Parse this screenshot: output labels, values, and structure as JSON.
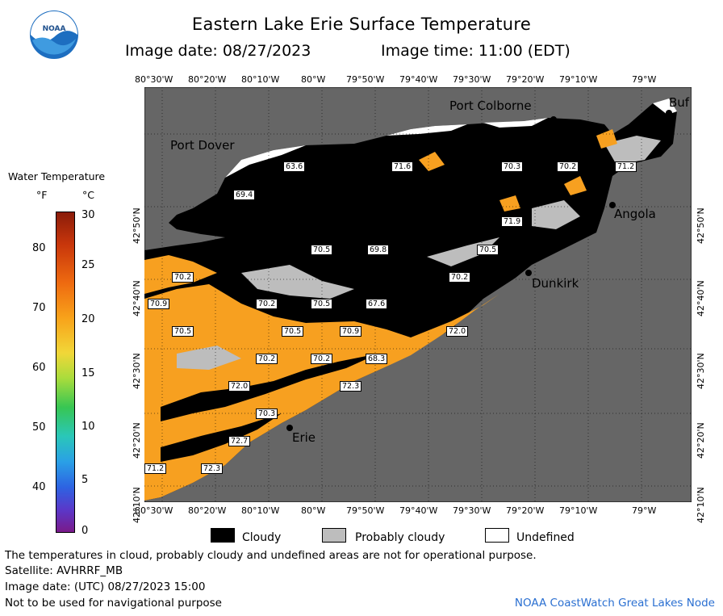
{
  "header": {
    "title": "Eastern Lake Erie Surface Temperature",
    "image_date": "Image date: 08/27/2023",
    "image_time": "Image time: 11:00 (EDT)"
  },
  "logo": {
    "text": "NOAA"
  },
  "map": {
    "lon_labels": [
      "80°30'W",
      "80°20'W",
      "80°10'W",
      "80°W",
      "79°50'W",
      "79°40'W",
      "79°30'W",
      "79°20'W",
      "79°10'W",
      "79°W"
    ],
    "lat_labels": [
      "42°50'N",
      "42°40'N",
      "42°30'N",
      "42°20'N",
      "42°10'N"
    ],
    "cities": [
      {
        "name": "Port Colborne"
      },
      {
        "name": "Port Dover"
      },
      {
        "name": "Angola"
      },
      {
        "name": "Dunkirk"
      },
      {
        "name": "Erie"
      },
      {
        "name": "Buf"
      }
    ],
    "temperature_labels": [
      "63.6",
      "69.4",
      "71.6",
      "70.3",
      "70.2",
      "71.2",
      "71.9",
      "70.5",
      "69.8",
      "70.5",
      "70.2",
      "70.2",
      "70.9",
      "70.2",
      "70.5",
      "67.6",
      "70.5",
      "70.5",
      "70.9",
      "72.0",
      "70.2",
      "70.2",
      "68.3",
      "72.0",
      "72.3",
      "70.3",
      "72.7",
      "71.2",
      "72.3"
    ],
    "colors": {
      "land": "#666666",
      "cloud": "#000000",
      "probably_cloudy": "#bdbdbd",
      "undefined": "#ffffff",
      "warm_water": "#f7a020",
      "grid": "#000000"
    }
  },
  "legend": {
    "title": "Water Temperature",
    "unit_f": "°F",
    "unit_c": "°C",
    "f_ticks": [
      "80",
      "70",
      "60",
      "50",
      "40"
    ],
    "c_ticks": [
      "30",
      "25",
      "20",
      "15",
      "10",
      "5",
      "0"
    ]
  },
  "key": {
    "cloudy": "Cloudy",
    "probably_cloudy": "Probably cloudy",
    "undefined": "Undefined"
  },
  "footer": {
    "disclaimer": "The temperatures in cloud, probably cloudy and undefined areas are not for operational purpose.",
    "satellite": "Satellite: AVHRRF_MB",
    "utc_date": "Image date: (UTC) 08/27/2023  15:00",
    "nav_warning": "Not to be used for navigational purpose",
    "credit": "NOAA CoastWatch Great Lakes Node"
  }
}
